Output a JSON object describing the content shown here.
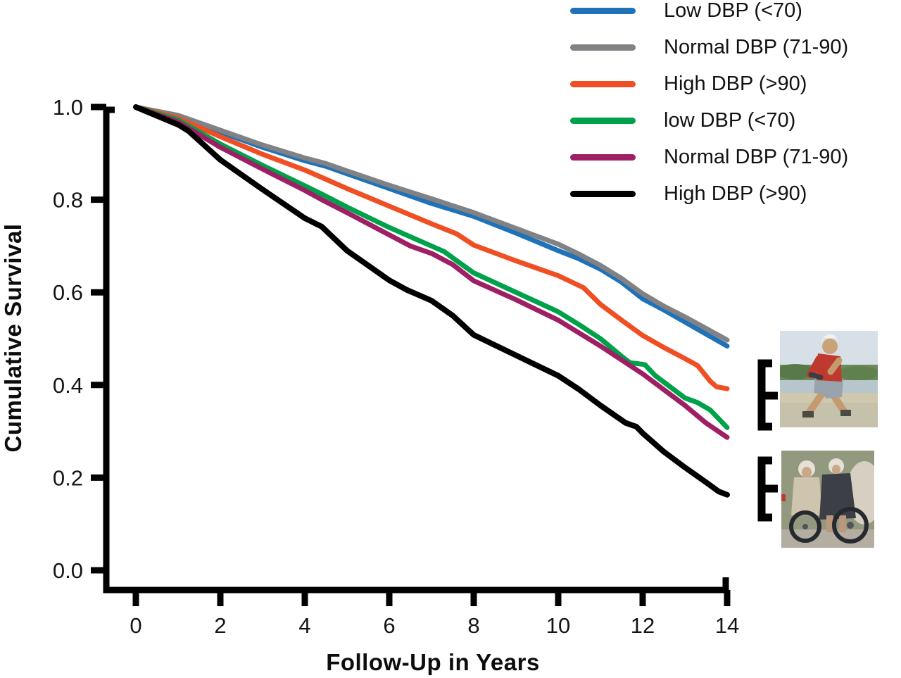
{
  "figure": {
    "background": "#ffffff",
    "images": {
      "top": "active-older-adult-photo",
      "bottom": "older-adults-in-wheelchairs-photo"
    }
  },
  "chart_data": {
    "type": "line",
    "title": "",
    "xlabel": "Follow-Up in Years",
    "ylabel": "Cumulative Survival",
    "xlim": [
      0,
      14
    ],
    "ylim": [
      0.0,
      1.0
    ],
    "grid": false,
    "legend_position": "top-right",
    "x_tick_values": [
      0,
      2,
      4,
      6,
      8,
      10,
      12,
      14
    ],
    "x_tick_labels": [
      "0",
      "2",
      "4",
      "6",
      "8",
      "10",
      "12",
      "14"
    ],
    "y_tick_values": [
      1.0,
      0.8,
      0.6,
      0.4,
      0.2,
      0.0
    ],
    "y_tick_labels": [
      "1.0",
      "0.8",
      "0.6",
      "0.4",
      "0.2",
      "0.0"
    ],
    "series": [
      {
        "name": "Low DBP (<70)",
        "color": "#1F72B8",
        "width": 7,
        "points": [
          [
            0,
            1.0
          ],
          [
            1,
            0.98
          ],
          [
            2,
            0.946
          ],
          [
            3,
            0.913
          ],
          [
            4,
            0.884
          ],
          [
            4.5,
            0.872
          ],
          [
            5,
            0.856
          ],
          [
            6,
            0.824
          ],
          [
            7,
            0.792
          ],
          [
            8,
            0.764
          ],
          [
            9,
            0.728
          ],
          [
            10,
            0.69
          ],
          [
            10.5,
            0.672
          ],
          [
            11,
            0.65
          ],
          [
            11.5,
            0.622
          ],
          [
            12,
            0.586
          ],
          [
            12.5,
            0.562
          ],
          [
            13,
            0.536
          ],
          [
            13.5,
            0.51
          ],
          [
            14,
            0.484
          ]
        ]
      },
      {
        "name": "Normal DBP (71-90)",
        "color": "#808285",
        "width": 7,
        "points": [
          [
            0,
            1.0
          ],
          [
            1,
            0.982
          ],
          [
            2,
            0.95
          ],
          [
            3,
            0.918
          ],
          [
            4,
            0.89
          ],
          [
            4.5,
            0.878
          ],
          [
            5,
            0.862
          ],
          [
            6,
            0.831
          ],
          [
            7,
            0.802
          ],
          [
            8,
            0.772
          ],
          [
            9,
            0.738
          ],
          [
            10,
            0.704
          ],
          [
            10.5,
            0.682
          ],
          [
            11,
            0.658
          ],
          [
            11.5,
            0.63
          ],
          [
            12,
            0.597
          ],
          [
            12.5,
            0.57
          ],
          [
            13,
            0.547
          ],
          [
            13.5,
            0.522
          ],
          [
            14,
            0.497
          ]
        ]
      },
      {
        "name": "High DBP (>90)",
        "color": "#F04E23",
        "width": 7,
        "points": [
          [
            0,
            1.0
          ],
          [
            1,
            0.976
          ],
          [
            2,
            0.936
          ],
          [
            3,
            0.898
          ],
          [
            4,
            0.864
          ],
          [
            4.4,
            0.848
          ],
          [
            5,
            0.824
          ],
          [
            6,
            0.786
          ],
          [
            7,
            0.748
          ],
          [
            7.6,
            0.726
          ],
          [
            8,
            0.702
          ],
          [
            9,
            0.668
          ],
          [
            10,
            0.636
          ],
          [
            10.6,
            0.61
          ],
          [
            11,
            0.574
          ],
          [
            11.5,
            0.54
          ],
          [
            12,
            0.507
          ],
          [
            12.5,
            0.481
          ],
          [
            13,
            0.457
          ],
          [
            13.3,
            0.442
          ],
          [
            13.6,
            0.408
          ],
          [
            13.75,
            0.396
          ],
          [
            14,
            0.392
          ]
        ]
      },
      {
        "name": "low DBP (<70)",
        "color": "#00A14B",
        "width": 7,
        "points": [
          [
            0,
            1.0
          ],
          [
            1,
            0.972
          ],
          [
            2,
            0.92
          ],
          [
            3,
            0.874
          ],
          [
            4,
            0.83
          ],
          [
            4.4,
            0.812
          ],
          [
            5,
            0.784
          ],
          [
            6,
            0.74
          ],
          [
            6.6,
            0.716
          ],
          [
            7,
            0.7
          ],
          [
            7.3,
            0.688
          ],
          [
            7.6,
            0.668
          ],
          [
            8,
            0.642
          ],
          [
            9,
            0.6
          ],
          [
            10,
            0.558
          ],
          [
            10.5,
            0.53
          ],
          [
            11,
            0.5
          ],
          [
            11.5,
            0.462
          ],
          [
            11.7,
            0.448
          ],
          [
            12.05,
            0.444
          ],
          [
            12.3,
            0.42
          ],
          [
            13,
            0.372
          ],
          [
            13.3,
            0.362
          ],
          [
            13.6,
            0.346
          ],
          [
            14,
            0.308
          ]
        ]
      },
      {
        "name": "Normal DBP (71-90)",
        "color": "#9E1F63",
        "width": 7,
        "points": [
          [
            0,
            1.0
          ],
          [
            1,
            0.968
          ],
          [
            2,
            0.913
          ],
          [
            3,
            0.866
          ],
          [
            4,
            0.82
          ],
          [
            4.4,
            0.8
          ],
          [
            5,
            0.772
          ],
          [
            6,
            0.724
          ],
          [
            6.5,
            0.7
          ],
          [
            7,
            0.684
          ],
          [
            7.5,
            0.66
          ],
          [
            8,
            0.625
          ],
          [
            9,
            0.584
          ],
          [
            10,
            0.54
          ],
          [
            11,
            0.484
          ],
          [
            12,
            0.424
          ],
          [
            12.5,
            0.39
          ],
          [
            13,
            0.356
          ],
          [
            13.5,
            0.318
          ],
          [
            14,
            0.287
          ]
        ]
      },
      {
        "name": "High DBP (>90)",
        "color": "#000000",
        "width": 8,
        "points": [
          [
            0,
            1.0
          ],
          [
            1,
            0.962
          ],
          [
            1.25,
            0.948
          ],
          [
            2,
            0.886
          ],
          [
            3,
            0.822
          ],
          [
            4,
            0.76
          ],
          [
            4.4,
            0.742
          ],
          [
            5,
            0.69
          ],
          [
            6,
            0.626
          ],
          [
            6.4,
            0.606
          ],
          [
            7,
            0.582
          ],
          [
            7.5,
            0.55
          ],
          [
            8,
            0.508
          ],
          [
            9,
            0.464
          ],
          [
            10,
            0.42
          ],
          [
            10.5,
            0.39
          ],
          [
            11,
            0.356
          ],
          [
            11.6,
            0.318
          ],
          [
            11.85,
            0.31
          ],
          [
            12,
            0.296
          ],
          [
            12.5,
            0.256
          ],
          [
            13,
            0.222
          ],
          [
            13.5,
            0.19
          ],
          [
            13.8,
            0.17
          ],
          [
            14,
            0.163
          ]
        ]
      }
    ]
  }
}
